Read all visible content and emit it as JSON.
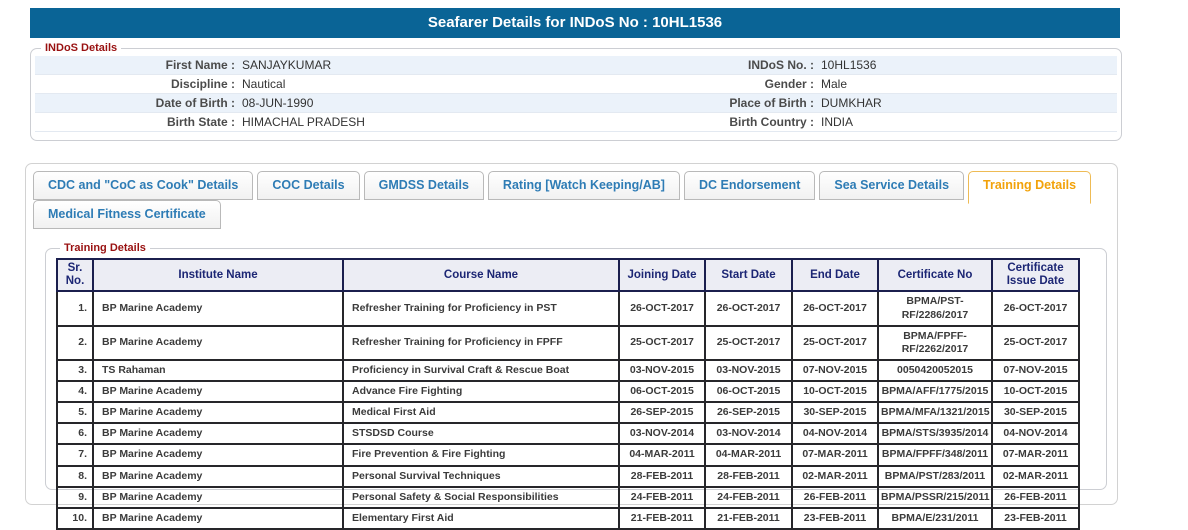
{
  "colors": {
    "titlebar_bg": "#0a6496",
    "legend_color": "#991111",
    "tab_text": "#2e7cb5",
    "tab_active_text": "#f2a20a",
    "tab_active_border": "#eebb55",
    "header_text": "#1c2674",
    "header_bg": "#ecedf4",
    "body_text": "#3b3b3b",
    "stripe_bg": "#ebf2fa"
  },
  "header": {
    "title": "Seafarer Details for INDoS No : 10HL1536"
  },
  "indos_details": {
    "legend": "INDoS Details",
    "rows": [
      {
        "left_label": "First Name :",
        "left_value": "SANJAYKUMAR",
        "right_label": "INDoS No. :",
        "right_value": "10HL1536"
      },
      {
        "left_label": "Discipline :",
        "left_value": "Nautical",
        "right_label": "Gender :",
        "right_value": "Male"
      },
      {
        "left_label": "Date of Birth :",
        "left_value": "08-JUN-1990",
        "right_label": "Place of Birth :",
        "right_value": "DUMKHAR"
      },
      {
        "left_label": "Birth State :",
        "left_value": "HIMACHAL PRADESH",
        "right_label": "Birth Country :",
        "right_value": "INDIA"
      }
    ]
  },
  "tabs": {
    "active": "Training Details",
    "row1": [
      "CDC and \"CoC as Cook\" Details",
      "COC Details",
      "GMDSS Details",
      "Rating [Watch Keeping/AB]",
      "DC Endorsement",
      "Sea Service Details",
      "Training Details"
    ],
    "row2": [
      "Medical Fitness Certificate"
    ]
  },
  "training": {
    "legend": "Training Details",
    "table": {
      "columns": [
        "Sr.\nNo.",
        "Institute Name",
        "Course Name",
        "Joining Date",
        "Start Date",
        "End Date",
        "Certificate No",
        "Certificate\nIssue Date"
      ],
      "rows": [
        [
          "1.",
          "BP Marine Academy",
          "Refresher Training for Proficiency in PST",
          "26-OCT-2017",
          "26-OCT-2017",
          "26-OCT-2017",
          "BPMA/PST-RF/2286/2017",
          "26-OCT-2017"
        ],
        [
          "2.",
          "BP Marine Academy",
          "Refresher Training for Proficiency in FPFF",
          "25-OCT-2017",
          "25-OCT-2017",
          "25-OCT-2017",
          "BPMA/FPFF-RF/2262/2017",
          "25-OCT-2017"
        ],
        [
          "3.",
          "TS Rahaman",
          "Proficiency in Survival Craft & Rescue Boat",
          "03-NOV-2015",
          "03-NOV-2015",
          "07-NOV-2015",
          "0050420052015",
          "07-NOV-2015"
        ],
        [
          "4.",
          "BP Marine Academy",
          "Advance Fire Fighting",
          "06-OCT-2015",
          "06-OCT-2015",
          "10-OCT-2015",
          "BPMA/AFF/1775/2015",
          "10-OCT-2015"
        ],
        [
          "5.",
          "BP Marine Academy",
          "Medical First Aid",
          "26-SEP-2015",
          "26-SEP-2015",
          "30-SEP-2015",
          "BPMA/MFA/1321/2015",
          "30-SEP-2015"
        ],
        [
          "6.",
          "BP Marine Academy",
          "STSDSD Course",
          "03-NOV-2014",
          "03-NOV-2014",
          "04-NOV-2014",
          "BPMA/STS/3935/2014",
          "04-NOV-2014"
        ],
        [
          "7.",
          "BP Marine Academy",
          "Fire Prevention & Fire Fighting",
          "04-MAR-2011",
          "04-MAR-2011",
          "07-MAR-2011",
          "BPMA/FPFF/348/2011",
          "07-MAR-2011"
        ],
        [
          "8.",
          "BP Marine Academy",
          "Personal Survival Techniques",
          "28-FEB-2011",
          "28-FEB-2011",
          "02-MAR-2011",
          "BPMA/PST/283/2011",
          "02-MAR-2011"
        ],
        [
          "9.",
          "BP Marine Academy",
          "Personal Safety & Social Responsibilities",
          "24-FEB-2011",
          "24-FEB-2011",
          "26-FEB-2011",
          "BPMA/PSSR/215/2011",
          "26-FEB-2011"
        ],
        [
          "10.",
          "BP Marine Academy",
          "Elementary First Aid",
          "21-FEB-2011",
          "21-FEB-2011",
          "23-FEB-2011",
          "BPMA/E/231/2011",
          "23-FEB-2011"
        ]
      ]
    }
  }
}
